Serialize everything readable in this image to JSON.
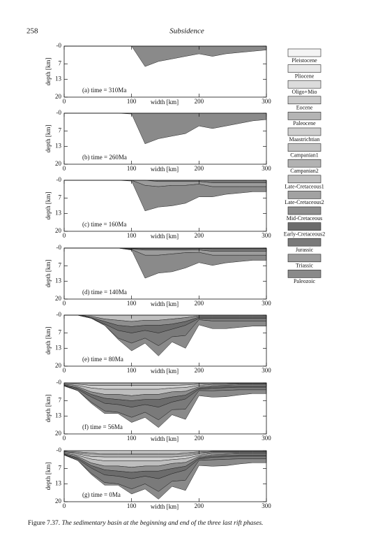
{
  "header": {
    "page_number": "258",
    "running_title": "Subsidence"
  },
  "chart_data": [
    {
      "type": "area",
      "title": "(a) time = 310Ma",
      "xlabel": "width [km]",
      "ylabel": "depth [km]",
      "x": [
        0,
        20,
        40,
        60,
        80,
        100,
        120,
        140,
        160,
        180,
        200,
        220,
        240,
        260,
        280,
        300
      ],
      "xlim": [
        0,
        300
      ],
      "xticks": [
        0,
        100,
        200,
        300
      ],
      "ylim": [
        0,
        20
      ],
      "y_inverted": true,
      "yticks": [
        {
          "value": 0,
          "label": "-0"
        },
        7,
        13,
        20
      ],
      "series": [
        {
          "name": "Paleozoic",
          "values": [
            0,
            0,
            0,
            0,
            0,
            0,
            8,
            6,
            5,
            4,
            3,
            4,
            3,
            2.5,
            2,
            1.5
          ]
        }
      ]
    },
    {
      "type": "area",
      "title": "(b) time = 260Ma",
      "xlabel": "width [km]",
      "ylabel": "depth [km]",
      "x": [
        0,
        20,
        40,
        60,
        80,
        100,
        120,
        140,
        160,
        180,
        200,
        220,
        240,
        260,
        280,
        300
      ],
      "xlim": [
        0,
        300
      ],
      "xticks": [
        0,
        100,
        200,
        300
      ],
      "ylim": [
        0,
        20
      ],
      "y_inverted": true,
      "yticks": [
        {
          "value": 0,
          "label": "-0"
        },
        7,
        13,
        20
      ],
      "series": [
        {
          "name": "Paleozoic",
          "values": [
            0,
            0,
            0,
            0,
            0,
            0.3,
            12,
            10,
            9,
            8,
            5,
            6,
            5,
            4,
            3,
            2.5
          ]
        }
      ]
    },
    {
      "type": "area",
      "title": "(c) time = 160Ma",
      "xlabel": "width [km]",
      "ylabel": "depth [km]",
      "x": [
        0,
        20,
        40,
        60,
        80,
        100,
        120,
        140,
        160,
        180,
        200,
        220,
        240,
        260,
        280,
        300
      ],
      "xlim": [
        0,
        300
      ],
      "xticks": [
        0,
        100,
        200,
        300
      ],
      "ylim": [
        0,
        20
      ],
      "y_inverted": true,
      "yticks": [
        {
          "value": 0,
          "label": "-0"
        },
        7,
        13,
        20
      ],
      "series": [
        {
          "name": "Jurassic",
          "values": [
            0,
            0,
            0,
            0,
            0,
            0,
            0,
            0.5,
            0.5,
            0.5,
            0.5,
            1,
            1,
            1,
            1,
            1
          ]
        },
        {
          "name": "Triassic",
          "values": [
            0,
            0,
            0,
            0,
            0,
            0,
            2,
            2,
            1.5,
            1.5,
            1,
            1.5,
            1.5,
            1.5,
            1.5,
            1.5
          ]
        },
        {
          "name": "Paleozoic",
          "values": [
            0,
            0,
            0,
            0,
            0,
            0.3,
            10,
            8,
            8,
            7,
            5,
            4,
            3,
            2.5,
            2,
            2
          ]
        }
      ]
    },
    {
      "type": "area",
      "title": "(d) time = 140Ma",
      "xlabel": "width [km]",
      "ylabel": "depth [km]",
      "x": [
        0,
        20,
        40,
        60,
        80,
        100,
        120,
        140,
        160,
        180,
        200,
        220,
        240,
        260,
        280,
        300
      ],
      "xlim": [
        0,
        300
      ],
      "xticks": [
        0,
        100,
        200,
        300
      ],
      "ylim": [
        0,
        20
      ],
      "y_inverted": true,
      "yticks": [
        {
          "value": 0,
          "label": "-0"
        },
        7,
        13,
        20
      ],
      "series": [
        {
          "name": "Early-Cretaceous2",
          "values": [
            0,
            0,
            0,
            0,
            0,
            0.2,
            0.3,
            0.3,
            0.3,
            0.3,
            0.2,
            0.3,
            0.3,
            0.3,
            0.3,
            0.3
          ]
        },
        {
          "name": "Jurassic",
          "values": [
            0,
            0,
            0,
            0,
            0,
            0.2,
            0.5,
            0.5,
            0.5,
            0.5,
            0.5,
            1,
            1,
            1,
            1,
            1
          ]
        },
        {
          "name": "Triassic",
          "values": [
            0,
            0,
            0,
            0,
            0,
            0.2,
            2,
            2,
            1.5,
            1,
            1,
            1.5,
            1.5,
            1.5,
            1.5,
            1.5
          ]
        },
        {
          "name": "Paleozoic",
          "values": [
            0,
            0,
            0,
            0,
            0,
            0.2,
            9,
            7,
            7,
            6,
            4,
            4,
            3,
            2.5,
            2,
            2
          ]
        }
      ]
    },
    {
      "type": "area",
      "title": "(e) time = 80Ma",
      "xlabel": "width [km]",
      "ylabel": "depth [km]",
      "x": [
        0,
        20,
        40,
        60,
        80,
        100,
        120,
        140,
        160,
        180,
        200,
        220,
        240,
        260,
        280,
        300
      ],
      "xlim": [
        0,
        300
      ],
      "xticks": [
        0,
        100,
        200,
        300
      ],
      "ylim": [
        0,
        20
      ],
      "y_inverted": true,
      "yticks": [
        {
          "value": 0,
          "label": "-0"
        },
        7,
        13,
        20
      ],
      "series": [
        {
          "name": "Late-Cretaceous1",
          "values": [
            0,
            0,
            0.5,
            1.5,
            2,
            2.5,
            2,
            2,
            1.5,
            1,
            0.3,
            0.3,
            0.3,
            0.3,
            0.3,
            0.3
          ]
        },
        {
          "name": "Mid-Cretaceous",
          "values": [
            0,
            0,
            0.5,
            1,
            2,
            2,
            2,
            2,
            2,
            1.5,
            0.5,
            0.5,
            0.5,
            0.5,
            0.5,
            0.5
          ]
        },
        {
          "name": "Early-Cretaceous2",
          "values": [
            0,
            0,
            0.2,
            1,
            2,
            2.5,
            2,
            3,
            2,
            1.5,
            0.5,
            0.5,
            0.5,
            0.5,
            0.5,
            0.5
          ]
        },
        {
          "name": "Jurassic",
          "values": [
            0,
            0,
            0,
            0.5,
            3,
            4,
            3,
            5,
            3,
            4,
            0.5,
            1,
            1,
            1,
            1,
            1
          ]
        },
        {
          "name": "Paleozoic",
          "values": [
            0,
            0,
            0,
            0,
            0.5,
            3,
            2,
            4,
            2,
            5,
            2,
            3,
            3,
            2.5,
            2,
            2
          ]
        }
      ]
    },
    {
      "type": "area",
      "title": "(f) time = 56Ma",
      "xlabel": "width [km]",
      "ylabel": "depth [km]",
      "x": [
        0,
        20,
        40,
        60,
        80,
        100,
        120,
        140,
        160,
        180,
        200,
        220,
        240,
        260,
        280,
        300
      ],
      "xlim": [
        0,
        300
      ],
      "xticks": [
        0,
        100,
        200,
        300
      ],
      "ylim": [
        0,
        20
      ],
      "y_inverted": true,
      "yticks": [
        {
          "value": 0,
          "label": "-0"
        },
        7,
        13,
        20
      ],
      "series": [
        {
          "name": "Paleocene",
          "values": [
            0.3,
            0.5,
            1,
            1,
            1,
            1,
            1,
            1,
            1,
            0.8,
            0.5,
            0.3,
            0.3,
            0.2,
            0.2,
            0.2
          ]
        },
        {
          "name": "Maastrichtian",
          "values": [
            0.3,
            0.5,
            1,
            1.5,
            1.5,
            1.5,
            1.5,
            1.5,
            1,
            1,
            0.5,
            0.3,
            0.3,
            0.2,
            0.2,
            0.2
          ]
        },
        {
          "name": "Late-Cretaceous1",
          "values": [
            0.2,
            0.5,
            1.5,
            2,
            2,
            2.5,
            2,
            2,
            1.5,
            1.5,
            0.5,
            0.5,
            0.3,
            0.3,
            0.3,
            0.3
          ]
        },
        {
          "name": "Mid-Cretaceous",
          "values": [
            0.2,
            0.5,
            1,
            1.5,
            2,
            2,
            2,
            2,
            2,
            1.5,
            0.5,
            0.5,
            0.5,
            0.5,
            0.5,
            0.5
          ]
        },
        {
          "name": "Early-Cretaceous2",
          "values": [
            0.2,
            0.5,
            1,
            2,
            2,
            2.5,
            2,
            3,
            2,
            1.5,
            0.5,
            0.5,
            0.5,
            0.5,
            0.5,
            0.5
          ]
        },
        {
          "name": "Jurassic",
          "values": [
            0,
            0.5,
            2,
            3,
            3,
            4,
            3,
            5,
            3,
            4,
            0.5,
            1,
            1,
            1,
            1,
            1
          ]
        },
        {
          "name": "Paleozoic",
          "values": [
            0,
            0,
            0.5,
            1,
            0.5,
            2,
            2,
            3,
            2,
            4,
            2,
            2.5,
            2.5,
            2,
            1.5,
            1.5
          ]
        }
      ]
    },
    {
      "type": "area",
      "title": "(g) time = 0Ma",
      "xlabel": "width [km]",
      "ylabel": "depth [km]",
      "x": [
        0,
        20,
        40,
        60,
        80,
        100,
        120,
        140,
        160,
        180,
        200,
        220,
        240,
        260,
        280,
        300
      ],
      "xlim": [
        0,
        300
      ],
      "xticks": [
        0,
        100,
        200,
        300
      ],
      "ylim": [
        0,
        20
      ],
      "y_inverted": true,
      "yticks": [
        {
          "value": 0,
          "label": "-0"
        },
        7,
        13,
        20
      ],
      "series": [
        {
          "name": "Oligo+Mio",
          "values": [
            0.3,
            0.5,
            0.8,
            1,
            1,
            1,
            1,
            1,
            1,
            0.8,
            0.5,
            0.3,
            0.3,
            0.3,
            0.3,
            0.3
          ]
        },
        {
          "name": "Eocene",
          "values": [
            0.2,
            0.3,
            0.5,
            0.5,
            0.5,
            0.5,
            0.5,
            0.5,
            0.5,
            0.5,
            0.3,
            0.2,
            0.2,
            0.2,
            0.2,
            0.2
          ]
        },
        {
          "name": "Paleocene",
          "values": [
            0.3,
            0.5,
            1,
            1,
            1,
            1,
            1,
            1,
            1,
            0.8,
            0.5,
            0.3,
            0.3,
            0.2,
            0.2,
            0.2
          ]
        },
        {
          "name": "Maastrichtian",
          "values": [
            0.3,
            0.5,
            1,
            1.5,
            1.5,
            1.5,
            1.5,
            1.5,
            1,
            1,
            0.5,
            0.3,
            0.3,
            0.2,
            0.2,
            0.2
          ]
        },
        {
          "name": "Late-Cretaceous1",
          "values": [
            0.2,
            0.5,
            1.5,
            2,
            2,
            2.5,
            2,
            2,
            1.5,
            1.5,
            0.5,
            0.5,
            0.3,
            0.3,
            0.3,
            0.3
          ]
        },
        {
          "name": "Mid-Cretaceous",
          "values": [
            0.2,
            0.5,
            1,
            1.5,
            2,
            2,
            2,
            2,
            2,
            1.5,
            0.5,
            0.5,
            0.5,
            0.5,
            0.5,
            0.5
          ]
        },
        {
          "name": "Early-Cretaceous2",
          "values": [
            0.2,
            0.5,
            1,
            2,
            2,
            2.5,
            2,
            3,
            2,
            1.5,
            0.5,
            0.5,
            0.5,
            0.5,
            0.5,
            0.5
          ]
        },
        {
          "name": "Jurassic",
          "values": [
            0,
            0.5,
            2,
            3,
            3,
            4,
            3,
            5,
            3,
            4,
            0.5,
            1,
            1,
            1,
            1,
            1
          ]
        },
        {
          "name": "Paleozoic",
          "values": [
            0,
            0,
            0.5,
            1,
            0.5,
            2,
            2,
            3,
            2,
            4,
            2,
            2.5,
            2.5,
            2,
            1.5,
            1.5
          ]
        }
      ]
    }
  ],
  "legend": [
    {
      "name": "Pleistocene",
      "color": "#f4f4f4"
    },
    {
      "name": "Pliocene",
      "color": "#e8e8e8"
    },
    {
      "name": "Oligo+Mio",
      "color": "#dcdcdc"
    },
    {
      "name": "Eocene",
      "color": "#cacaca"
    },
    {
      "name": "Paleocene",
      "color": "#b4b4b4"
    },
    {
      "name": "Maastrichtian",
      "color": "#cfcfcf"
    },
    {
      "name": "Campanian1",
      "color": "#c2c2c2"
    },
    {
      "name": "Campanian2",
      "color": "#b2b2b2"
    },
    {
      "name": "Late-Cretaceous1",
      "color": "#bebebe"
    },
    {
      "name": "Late-Cretaceous2",
      "color": "#a2a2a2"
    },
    {
      "name": "Mid-Cretaceous",
      "color": "#8e8e8e"
    },
    {
      "name": "Early-Cretaceous2",
      "color": "#6c6c6c"
    },
    {
      "name": "Jurassic",
      "color": "#7a7a7a"
    },
    {
      "name": "Triassic",
      "color": "#9c9c9c"
    },
    {
      "name": "Paleozoic",
      "color": "#8a8a8a"
    }
  ],
  "caption": {
    "label": "Figure 7.37.",
    "text": "The sedimentary basin at the beginning and end of the three last rift phases."
  }
}
